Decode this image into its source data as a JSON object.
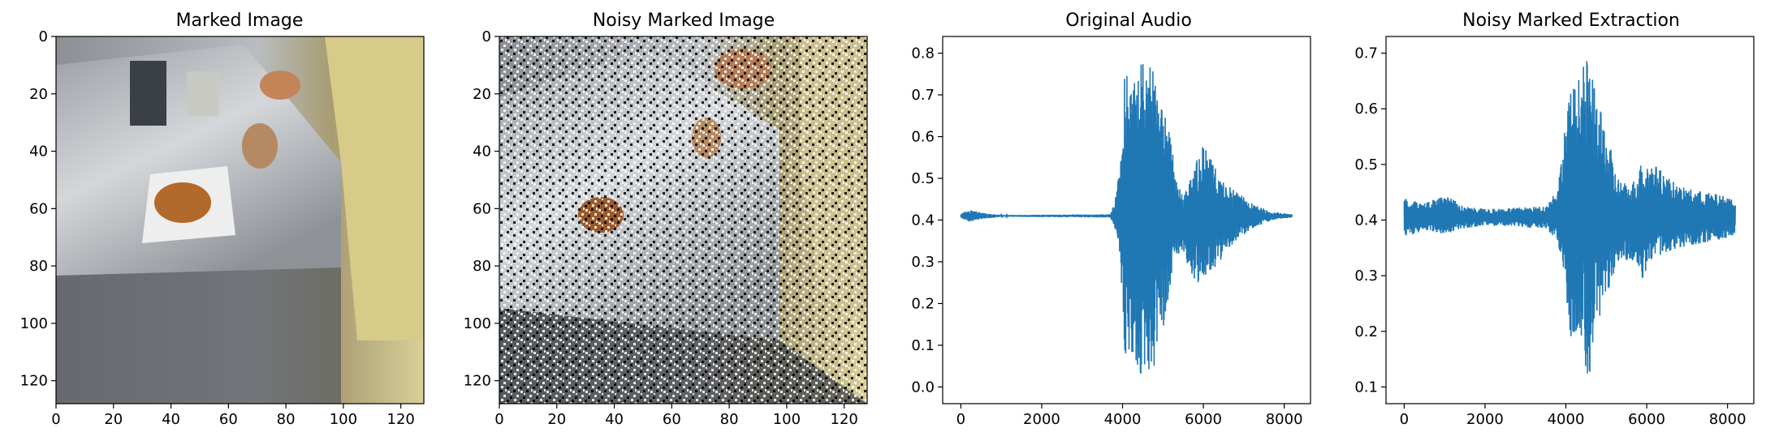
{
  "chart_data": [
    {
      "type": "image",
      "title": "Marked Image",
      "xlim": [
        0,
        128
      ],
      "ylim": [
        128,
        0
      ],
      "xticks": [
        0,
        20,
        40,
        60,
        80,
        100,
        120
      ],
      "yticks": [
        0,
        20,
        40,
        60,
        80,
        100,
        120
      ],
      "y_inverted": true,
      "content": "photo"
    },
    {
      "type": "image",
      "title": "Noisy Marked Image",
      "xlim": [
        0,
        128
      ],
      "ylim": [
        128,
        0
      ],
      "xticks": [
        0,
        20,
        40,
        60,
        80,
        100,
        120
      ],
      "yticks": [
        0,
        20,
        40,
        60,
        80,
        100,
        120
      ],
      "y_inverted": true,
      "content": "photo with salt-and-pepper noise"
    },
    {
      "type": "line",
      "title": "Original Audio",
      "xlim": [
        -450,
        8650
      ],
      "ylim": [
        -0.04,
        0.84
      ],
      "xticks": [
        0,
        2000,
        4000,
        6000,
        8000
      ],
      "yticks": [
        0.0,
        0.1,
        0.2,
        0.3,
        0.4,
        0.5,
        0.6,
        0.7,
        0.8
      ],
      "color": "#1f77b4",
      "baseline": 0.41,
      "n_samples": 8192,
      "envelope": [
        {
          "x": 0,
          "lo": 0.405,
          "hi": 0.415
        },
        {
          "x": 200,
          "lo": 0.395,
          "hi": 0.425
        },
        {
          "x": 500,
          "lo": 0.402,
          "hi": 0.418
        },
        {
          "x": 1000,
          "lo": 0.408,
          "hi": 0.412
        },
        {
          "x": 3700,
          "lo": 0.406,
          "hi": 0.414
        },
        {
          "x": 3800,
          "lo": 0.38,
          "hi": 0.44
        },
        {
          "x": 3950,
          "lo": 0.3,
          "hi": 0.55
        },
        {
          "x": 4050,
          "lo": 0.05,
          "hi": 0.75
        },
        {
          "x": 4300,
          "lo": 0.06,
          "hi": 0.74
        },
        {
          "x": 4550,
          "lo": 0.0,
          "hi": 0.8
        },
        {
          "x": 4750,
          "lo": 0.03,
          "hi": 0.76
        },
        {
          "x": 4950,
          "lo": 0.12,
          "hi": 0.68
        },
        {
          "x": 5200,
          "lo": 0.22,
          "hi": 0.6
        },
        {
          "x": 5300,
          "lo": 0.3,
          "hi": 0.5
        },
        {
          "x": 5500,
          "lo": 0.33,
          "hi": 0.46
        },
        {
          "x": 5700,
          "lo": 0.26,
          "hi": 0.5
        },
        {
          "x": 5950,
          "lo": 0.24,
          "hi": 0.58
        },
        {
          "x": 6100,
          "lo": 0.26,
          "hi": 0.57
        },
        {
          "x": 6400,
          "lo": 0.3,
          "hi": 0.5
        },
        {
          "x": 6800,
          "lo": 0.35,
          "hi": 0.47
        },
        {
          "x": 7200,
          "lo": 0.38,
          "hi": 0.44
        },
        {
          "x": 7700,
          "lo": 0.4,
          "hi": 0.42
        },
        {
          "x": 8192,
          "lo": 0.406,
          "hi": 0.414
        }
      ]
    },
    {
      "type": "line",
      "title": "Noisy Marked Extraction",
      "xlim": [
        -450,
        8650
      ],
      "ylim": [
        0.07,
        0.73
      ],
      "xticks": [
        0,
        2000,
        4000,
        6000,
        8000
      ],
      "yticks": [
        0.1,
        0.2,
        0.3,
        0.4,
        0.5,
        0.6,
        0.7
      ],
      "color": "#1f77b4",
      "baseline": 0.405,
      "n_samples": 8192,
      "envelope": [
        {
          "x": 0,
          "lo": 0.37,
          "hi": 0.44
        },
        {
          "x": 500,
          "lo": 0.38,
          "hi": 0.43
        },
        {
          "x": 1000,
          "lo": 0.375,
          "hi": 0.445
        },
        {
          "x": 1500,
          "lo": 0.385,
          "hi": 0.425
        },
        {
          "x": 2000,
          "lo": 0.39,
          "hi": 0.42
        },
        {
          "x": 3500,
          "lo": 0.385,
          "hi": 0.425
        },
        {
          "x": 3800,
          "lo": 0.36,
          "hi": 0.46
        },
        {
          "x": 3950,
          "lo": 0.3,
          "hi": 0.55
        },
        {
          "x": 4100,
          "lo": 0.18,
          "hi": 0.63
        },
        {
          "x": 4350,
          "lo": 0.2,
          "hi": 0.66
        },
        {
          "x": 4550,
          "lo": 0.105,
          "hi": 0.7
        },
        {
          "x": 4750,
          "lo": 0.2,
          "hi": 0.62
        },
        {
          "x": 5050,
          "lo": 0.27,
          "hi": 0.55
        },
        {
          "x": 5250,
          "lo": 0.32,
          "hi": 0.48
        },
        {
          "x": 5600,
          "lo": 0.33,
          "hi": 0.46
        },
        {
          "x": 5900,
          "lo": 0.29,
          "hi": 0.51
        },
        {
          "x": 6200,
          "lo": 0.33,
          "hi": 0.5
        },
        {
          "x": 6800,
          "lo": 0.35,
          "hi": 0.46
        },
        {
          "x": 7500,
          "lo": 0.36,
          "hi": 0.45
        },
        {
          "x": 8192,
          "lo": 0.37,
          "hi": 0.44
        }
      ]
    }
  ]
}
